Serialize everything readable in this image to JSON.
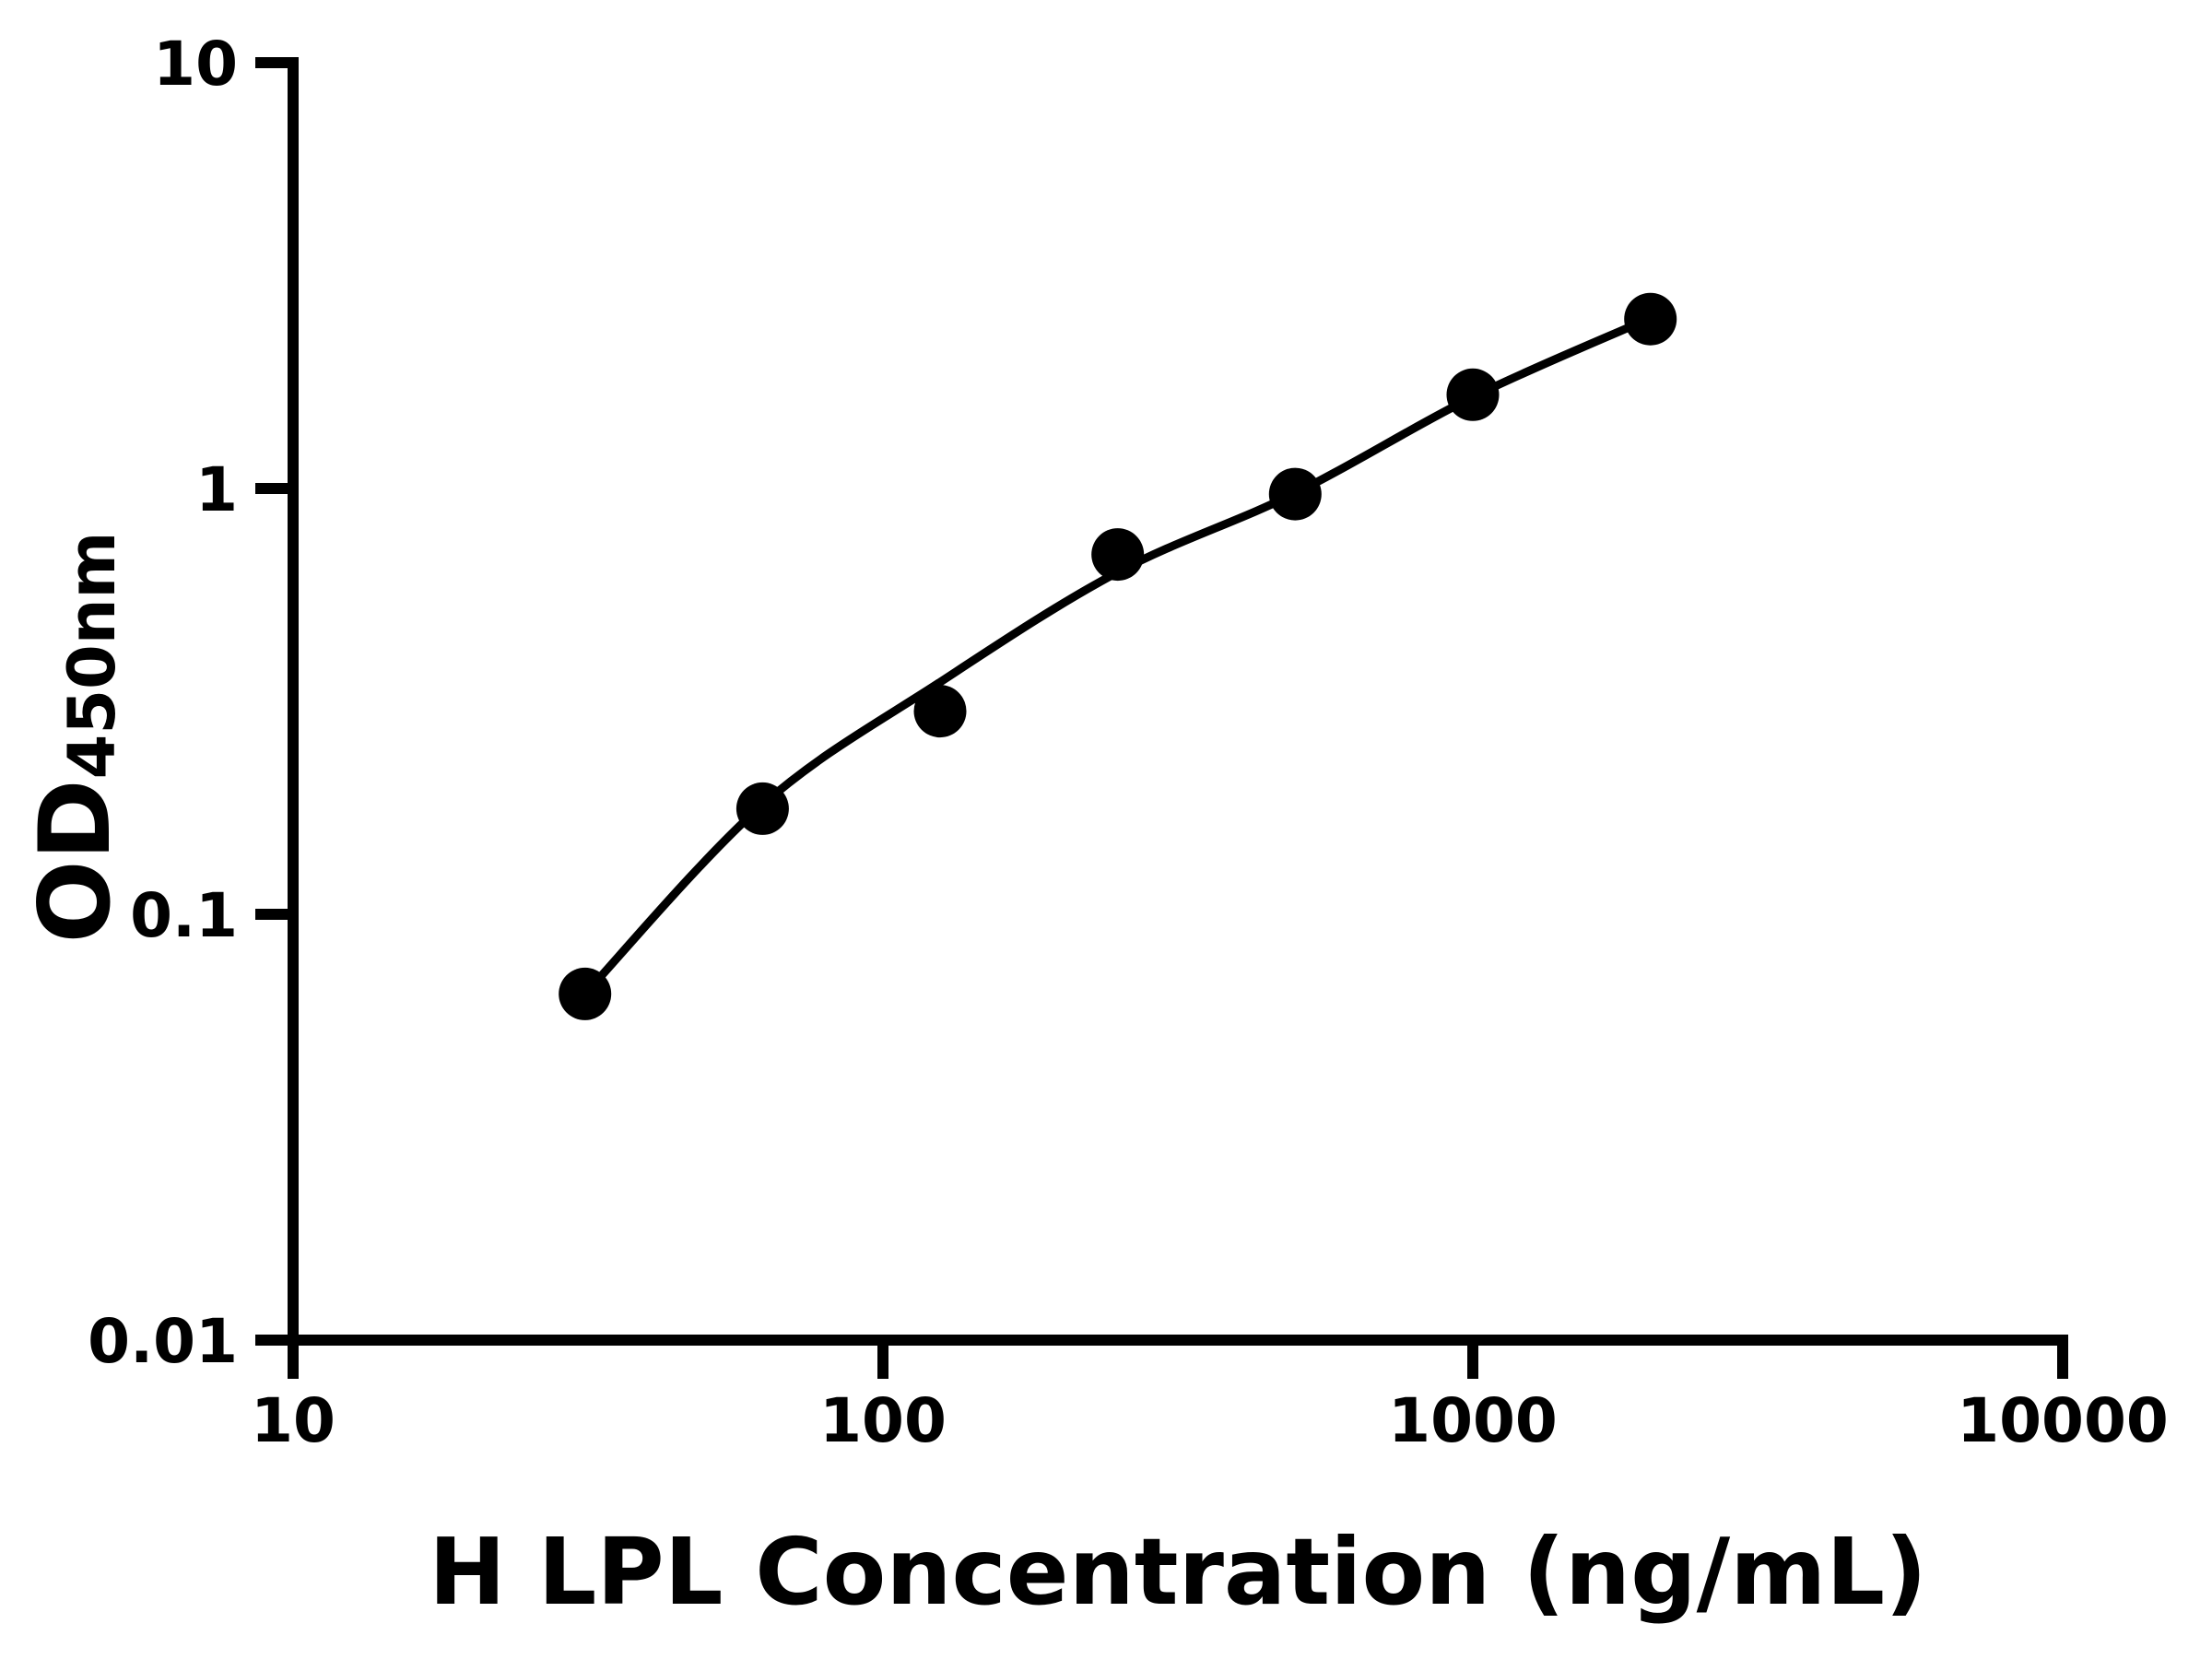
{
  "chart_data": {
    "type": "scatter",
    "title": "",
    "xlabel": "H LPL Concentration (ng/mL)",
    "ylabel": {
      "main": "OD",
      "subscript": "450nm"
    },
    "x_scale": "log10",
    "y_scale": "log10",
    "xlim": [
      10,
      10000
    ],
    "ylim": [
      0.01,
      10
    ],
    "grid": false,
    "legend": "none",
    "x_ticks": [
      {
        "value": 10,
        "label": "10"
      },
      {
        "value": 100,
        "label": "100"
      },
      {
        "value": 1000,
        "label": "1000"
      },
      {
        "value": 10000,
        "label": "10000"
      }
    ],
    "y_ticks": [
      {
        "value": 10,
        "label": "10"
      },
      {
        "value": 1,
        "label": "1"
      },
      {
        "value": 0.1,
        "label": "0.1"
      },
      {
        "value": 0.01,
        "label": "0.01"
      }
    ],
    "series": [
      {
        "name": "standard-data-points",
        "type": "scatter",
        "marker": "filled-circle",
        "color": "#000000",
        "points": [
          [
            31.25,
            0.065
          ],
          [
            62.5,
            0.177
          ],
          [
            125,
            0.3
          ],
          [
            250,
            0.7
          ],
          [
            500,
            0.97
          ],
          [
            1000,
            1.66
          ],
          [
            2000,
            2.5
          ]
        ]
      },
      {
        "name": "4pl-fit-curve",
        "type": "line",
        "color": "#000000",
        "points": [
          [
            31.25,
            0.065
          ],
          [
            62.5,
            0.181
          ],
          [
            125,
            0.351
          ],
          [
            250,
            0.636
          ],
          [
            500,
            0.975
          ],
          [
            1000,
            1.64
          ],
          [
            2000,
            2.512
          ]
        ]
      }
    ],
    "colors": {
      "background": "#ffffff",
      "axis": "#000000"
    }
  }
}
